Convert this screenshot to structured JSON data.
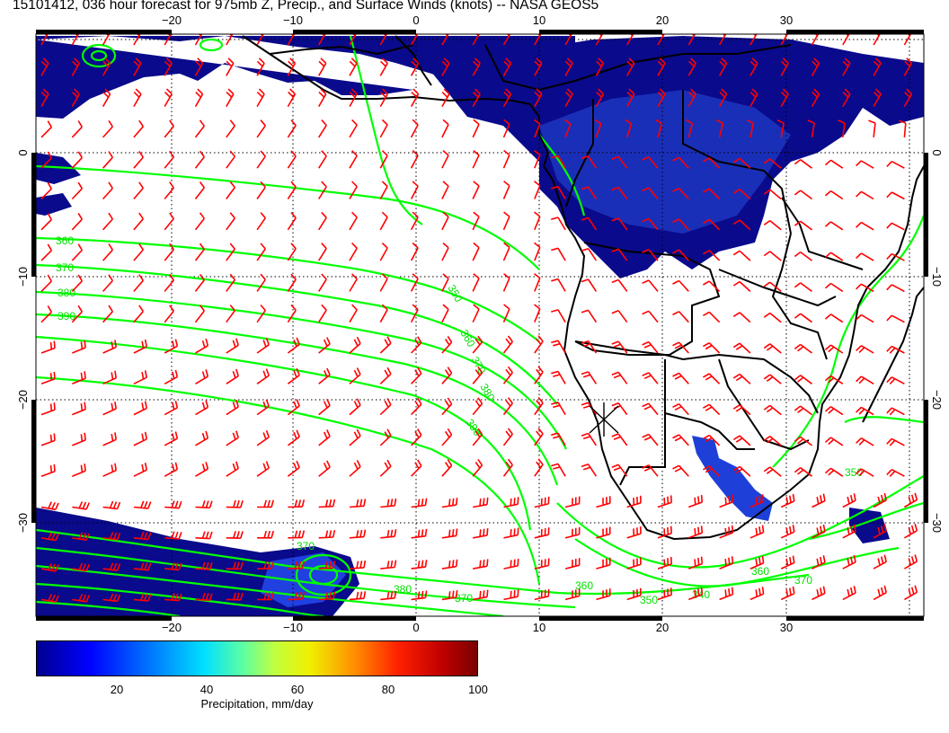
{
  "title": "15101412, 036 hour forecast for 975mb Z, Precip., and Surface Winds (knots) -- NASA GEOS5",
  "map": {
    "lon_range": [
      -30,
      41
    ],
    "lat_range": [
      -38.5,
      8.7
    ],
    "lon_ticks": [
      "−20",
      "−10",
      "0",
      "10",
      "20",
      "30"
    ],
    "lat_ticks_left": [
      "0",
      "−10",
      "−20",
      "−30"
    ],
    "lat_ticks_right": [
      "0",
      "−10",
      "−20",
      "−30"
    ],
    "contour_labels": [
      "360",
      "370",
      "380",
      "390",
      "350",
      "360",
      "370",
      "380",
      "390",
      "380",
      "370",
      "360",
      "350",
      "340",
      "360",
      "370",
      "370",
      "350"
    ],
    "colors": {
      "contour": "#00ff00",
      "barb": "#ff0000",
      "coast": "#000000",
      "precip_dark": "#0a0a8c",
      "precip_mid": "#1e2fd0"
    }
  },
  "colorbar": {
    "ticks": [
      "20",
      "40",
      "60",
      "80",
      "100"
    ],
    "tick_values": [
      20,
      40,
      60,
      80,
      100
    ],
    "range": [
      0,
      100
    ],
    "label": "Precipitation, mm/day"
  }
}
